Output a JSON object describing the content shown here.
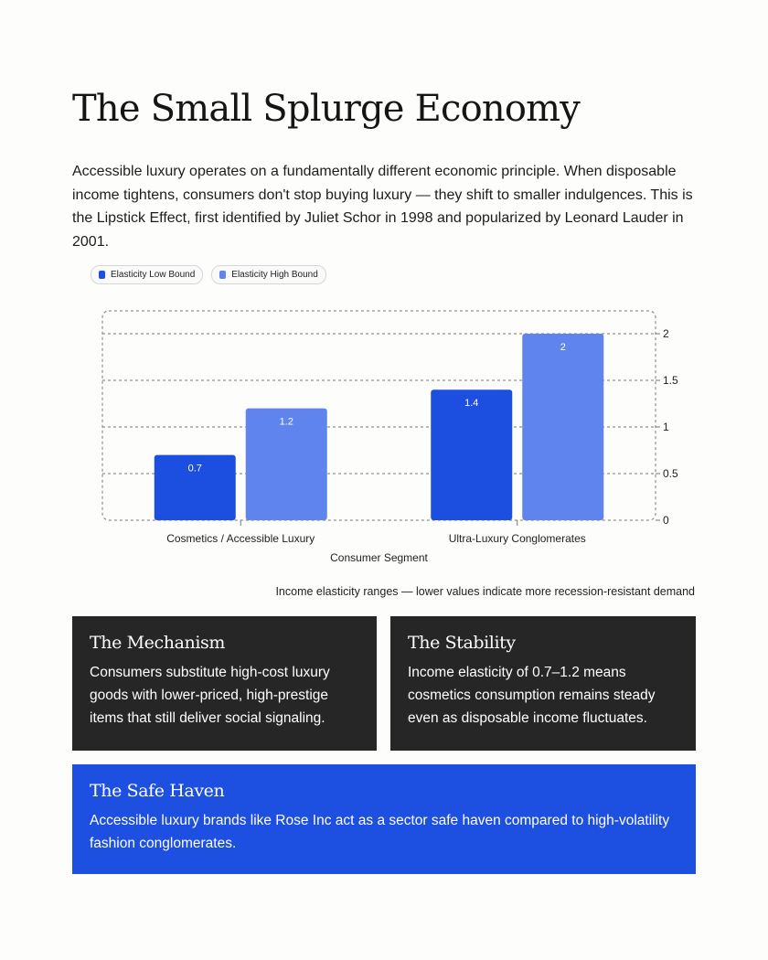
{
  "page": {
    "title": "The Small Splurge Economy",
    "intro": "Accessible luxury operates on a fundamentally different economic principle. When disposable income tightens, consumers don't stop buying luxury — they shift to smaller indulgences. This is the Lipstick Effect, first identified by Juliet Schor in 1998 and popularized by Leonard Lauder in 2001.",
    "caption": "Income elasticity ranges — lower values indicate more recession-resistant demand"
  },
  "chart_data": {
    "type": "bar",
    "categories": [
      "Cosmetics / Accessible Luxury",
      "Ultra-Luxury Conglomerates"
    ],
    "series": [
      {
        "name": "Elasticity Low Bound",
        "values": [
          0.7,
          1.4
        ],
        "color": "#1c4fe0"
      },
      {
        "name": "Elasticity High Bound",
        "values": [
          1.2,
          2
        ],
        "color": "#5f84ee"
      }
    ],
    "xlabel": "Consumer Segment",
    "ylabel": "",
    "ylim": [
      0,
      2
    ],
    "yticks": [
      0,
      0.5,
      1,
      1.5,
      2
    ],
    "grid": true,
    "legend_position": "top-left",
    "y_axis_side": "right"
  },
  "cards": {
    "mechanism": {
      "title": "The Mechanism",
      "body": "Consumers substitute high-cost luxury goods with lower-priced, high-prestige items that still deliver social signaling."
    },
    "stability": {
      "title": "The Stability",
      "body": "Income elasticity of 0.7–1.2 means cosmetics consumption remains steady even as disposable income fluctuates."
    },
    "safe_haven": {
      "title": "The Safe Haven",
      "body": "Accessible luxury brands like Rose Inc act as a sector safe haven compared to high-volatility fashion conglomerates."
    }
  }
}
